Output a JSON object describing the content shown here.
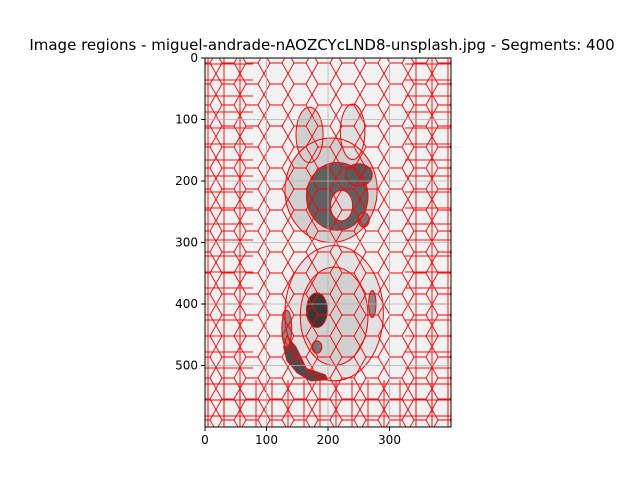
{
  "chart_data": {
    "type": "image-segmentation",
    "title": "Image regions - miguel-andrade-nAOZCYcLND8-unsplash.jpg - Segments: 400",
    "xlim": [
      0,
      400
    ],
    "ylim": [
      600,
      0
    ],
    "xticks": [
      0,
      100,
      200,
      300
    ],
    "yticks": [
      0,
      100,
      200,
      300,
      400,
      500
    ],
    "grid": true,
    "boundary_color": "#ff0000",
    "background_tone": "#f2f2f2",
    "regions": [
      {
        "label": "head",
        "shape": "ellipse",
        "cx": 205,
        "cy": 215,
        "rx": 75,
        "ry": 85,
        "tone": "#cfcfcf"
      },
      {
        "label": "ear-left",
        "shape": "ellipse",
        "cx": 170,
        "cy": 125,
        "rx": 22,
        "ry": 45,
        "tone": "#cfcfcf"
      },
      {
        "label": "ear-right",
        "shape": "ellipse",
        "cx": 240,
        "cy": 120,
        "rx": 20,
        "ry": 45,
        "tone": "#e0e0e0"
      },
      {
        "label": "head-dark",
        "shape": "ellipse",
        "cx": 215,
        "cy": 225,
        "rx": 50,
        "ry": 55,
        "tone": "#606060"
      },
      {
        "label": "head-light",
        "shape": "ellipse",
        "cx": 222,
        "cy": 240,
        "rx": 18,
        "ry": 25,
        "tone": "#d8d8d8"
      },
      {
        "label": "head-dark-2",
        "shape": "ellipse",
        "cx": 250,
        "cy": 190,
        "rx": 22,
        "ry": 18,
        "tone": "#5a5a5a"
      },
      {
        "label": "small-dark-spot",
        "shape": "ellipse",
        "cx": 258,
        "cy": 263,
        "rx": 9,
        "ry": 12,
        "tone": "#777777"
      },
      {
        "label": "body",
        "shape": "ellipse",
        "cx": 210,
        "cy": 415,
        "rx": 80,
        "ry": 110,
        "tone": "#e2e2e2"
      },
      {
        "label": "body-inner",
        "shape": "ellipse",
        "cx": 210,
        "cy": 420,
        "rx": 55,
        "ry": 80,
        "tone": "#d0d0d0"
      },
      {
        "label": "body-dark-spot",
        "shape": "ellipse",
        "cx": 182,
        "cy": 410,
        "rx": 17,
        "ry": 28,
        "tone": "#383838"
      },
      {
        "label": "body-small-spot",
        "shape": "ellipse",
        "cx": 182,
        "cy": 470,
        "rx": 8,
        "ry": 10,
        "tone": "#777777"
      },
      {
        "label": "body-right-edge",
        "shape": "ellipse",
        "cx": 272,
        "cy": 400,
        "rx": 6,
        "ry": 22,
        "tone": "#8a8a8a"
      },
      {
        "label": "tail",
        "shape": "path",
        "points": [
          [
            148,
            470
          ],
          [
            165,
            505
          ],
          [
            195,
            515
          ],
          [
            200,
            523
          ],
          [
            172,
            525
          ],
          [
            150,
            512
          ],
          [
            133,
            492
          ],
          [
            128,
            470
          ],
          [
            133,
            452
          ]
        ],
        "tone": "#4d4d4d"
      },
      {
        "label": "left-edge",
        "shape": "ellipse",
        "cx": 133,
        "cy": 440,
        "rx": 8,
        "ry": 30,
        "tone": "#8a8a8a"
      }
    ]
  }
}
